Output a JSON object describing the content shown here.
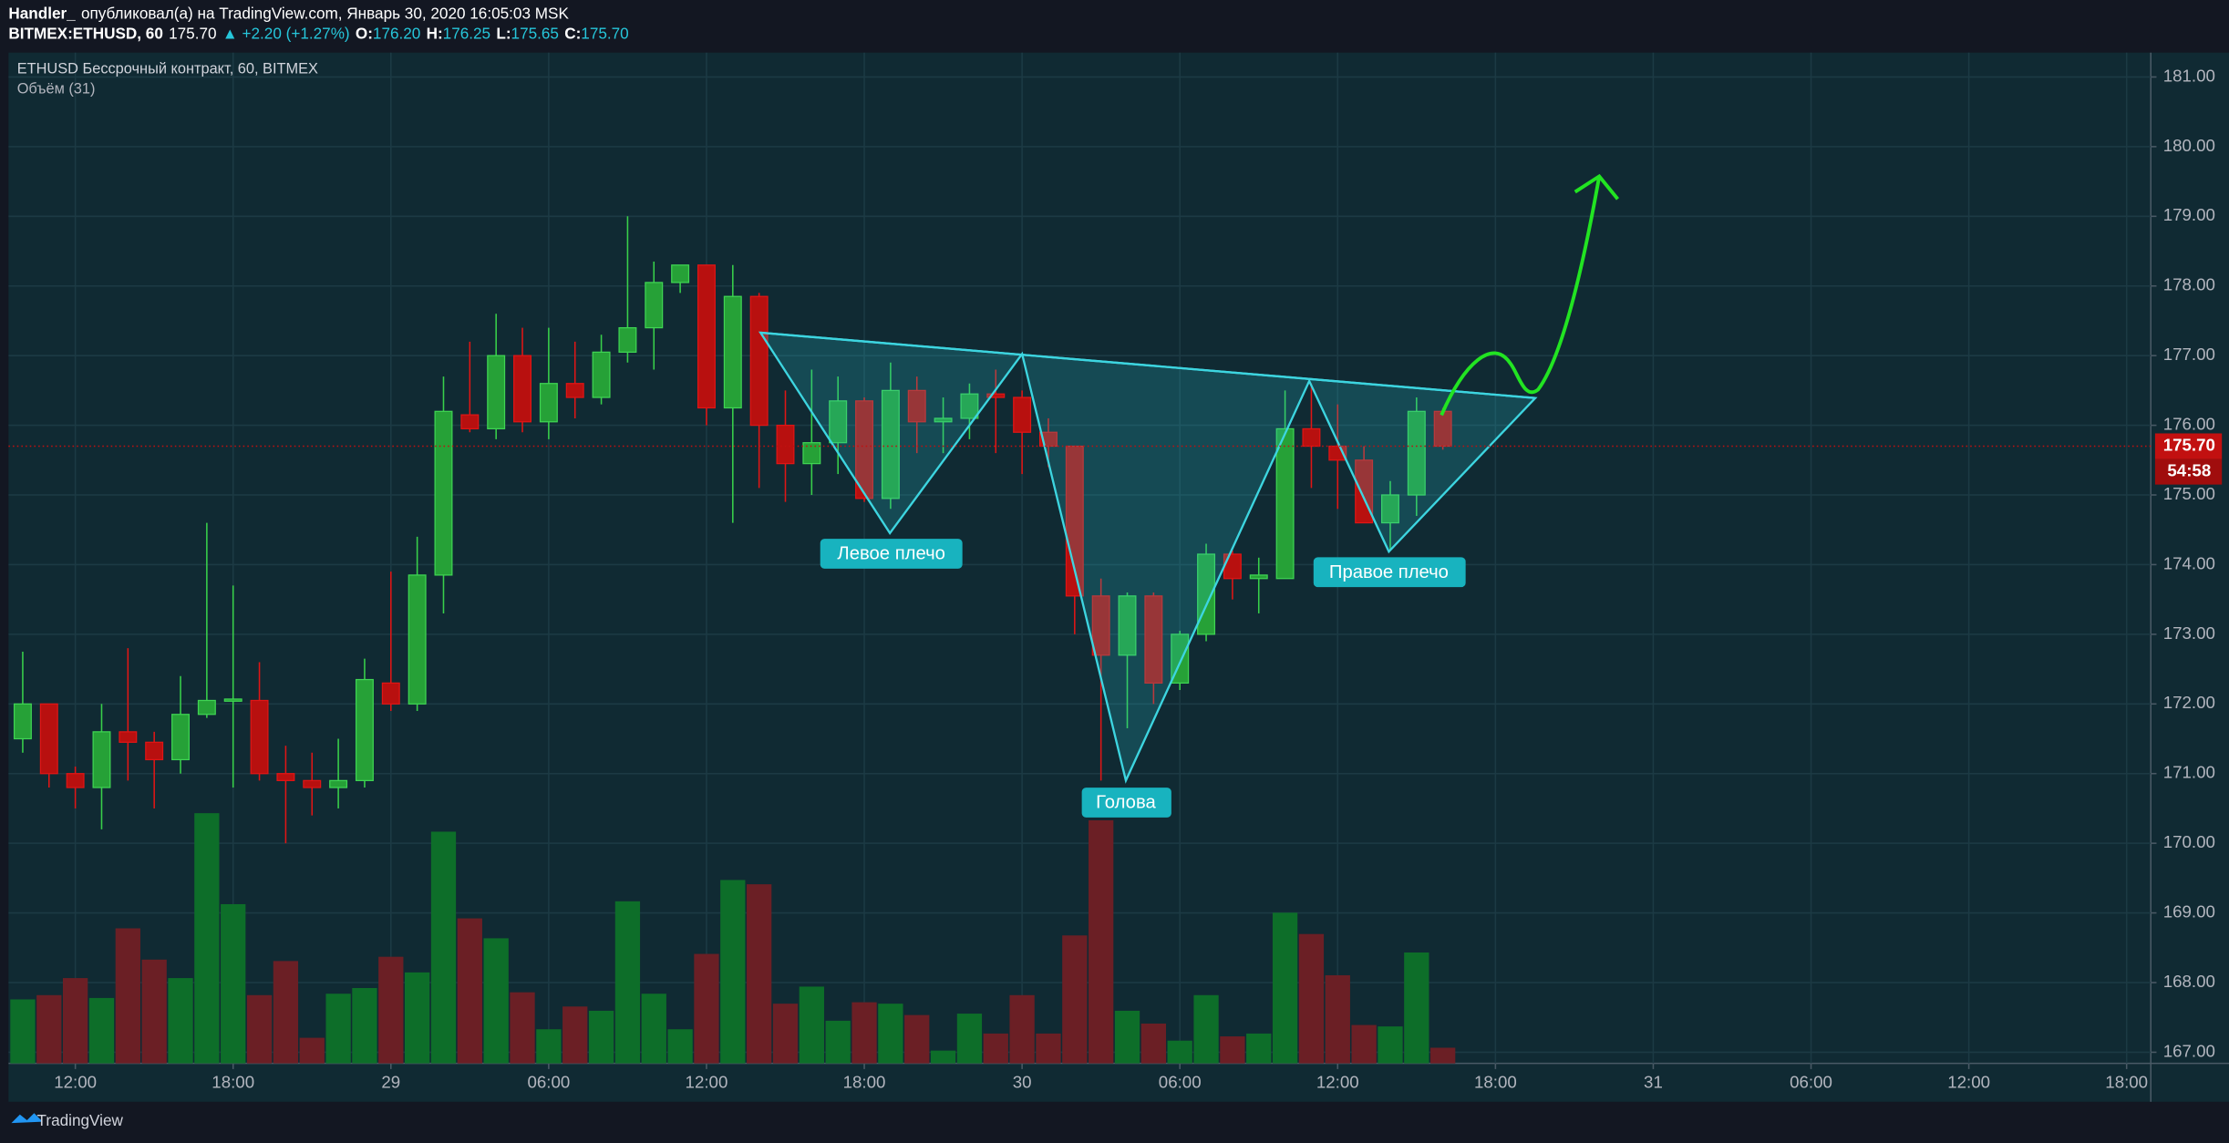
{
  "header": {
    "author": "Handler_",
    "published": "опубликовал(а) на TradingView.com, Январь 30, 2020 16:05:03 MSK",
    "symbol": "BITMEX:ETHUSD, 60",
    "last": "175.70",
    "change": "▲ +2.20 (+1.27%)",
    "o_label": "O:",
    "o": "176.20",
    "h_label": "H:",
    "h": "176.25",
    "l_label": "L:",
    "l": "175.65",
    "c_label": "C:",
    "c": "175.70"
  },
  "chart_data": {
    "type": "candlestick",
    "title": "ETHUSD Бессрочный контракт, 60, BITMEX",
    "volume_label": "Объём (31)",
    "open": [
      171.5,
      172.0,
      171.0,
      170.8,
      171.6,
      171.45,
      171.2,
      171.85,
      172.05,
      172.05,
      171.0,
      170.9,
      170.8,
      170.9,
      172.3,
      172.0,
      173.85,
      176.15,
      175.95,
      177.0,
      176.05,
      176.6,
      176.4,
      177.05,
      177.4,
      178.05,
      178.3,
      176.25,
      177.85,
      176.0,
      175.45,
      175.75,
      176.35,
      174.95,
      176.5,
      176.05,
      176.1,
      176.45,
      176.4,
      175.9,
      175.7,
      173.55,
      172.7,
      173.55,
      172.3,
      173.0,
      174.15,
      173.8,
      173.8,
      175.95,
      175.7,
      175.5,
      174.6,
      175.0,
      176.2
    ],
    "high": [
      172.75,
      172.0,
      171.1,
      172.0,
      172.8,
      171.6,
      172.4,
      174.6,
      173.7,
      172.6,
      171.4,
      171.3,
      171.5,
      172.65,
      173.9,
      174.4,
      176.7,
      177.2,
      177.6,
      177.4,
      177.4,
      177.2,
      177.3,
      179.0,
      178.35,
      178.3,
      178.3,
      178.3,
      177.9,
      176.5,
      176.8,
      176.7,
      176.4,
      176.9,
      176.7,
      176.4,
      176.6,
      176.8,
      176.5,
      176.1,
      175.7,
      173.8,
      173.6,
      173.6,
      173.05,
      174.3,
      174.2,
      174.1,
      176.5,
      176.6,
      176.3,
      175.7,
      175.2,
      176.4,
      176.25
    ],
    "low": [
      171.3,
      170.8,
      170.5,
      170.2,
      170.9,
      170.5,
      171.0,
      171.8,
      170.8,
      170.9,
      170.0,
      170.4,
      170.5,
      170.8,
      171.9,
      171.9,
      173.3,
      175.9,
      175.8,
      175.9,
      175.8,
      176.1,
      176.3,
      176.9,
      176.8,
      177.9,
      176.0,
      174.6,
      175.1,
      174.9,
      175.0,
      175.3,
      174.9,
      174.8,
      175.6,
      175.6,
      175.8,
      175.6,
      175.3,
      175.4,
      173.0,
      170.9,
      171.65,
      172.0,
      172.2,
      172.9,
      173.5,
      173.3,
      173.8,
      175.1,
      174.8,
      174.6,
      174.2,
      174.7,
      175.65
    ],
    "close": [
      172.0,
      171.0,
      170.8,
      171.6,
      171.45,
      171.2,
      171.85,
      172.05,
      172.07,
      171.0,
      170.9,
      170.8,
      170.9,
      172.35,
      172.0,
      173.85,
      176.2,
      175.95,
      177.0,
      176.05,
      176.6,
      176.4,
      177.05,
      177.4,
      178.05,
      178.3,
      176.25,
      177.85,
      176.0,
      175.45,
      175.75,
      176.35,
      174.95,
      176.5,
      176.05,
      176.1,
      176.45,
      176.4,
      175.9,
      175.7,
      173.55,
      172.7,
      173.55,
      172.3,
      173.0,
      174.15,
      173.8,
      173.85,
      175.95,
      175.7,
      175.5,
      174.6,
      175.0,
      176.2,
      175.7
    ],
    "volume": [
      45,
      48,
      60,
      46,
      95,
      73,
      60,
      176,
      112,
      48,
      72,
      18,
      49,
      53,
      75,
      64,
      163,
      102,
      88,
      50,
      24,
      40,
      37,
      114,
      49,
      24,
      77,
      129,
      126,
      42,
      54,
      30,
      43,
      42,
      34,
      9,
      35,
      21,
      48,
      21,
      90,
      171,
      37,
      28,
      16,
      48,
      19,
      21,
      106,
      91,
      62,
      27,
      26,
      78,
      11
    ],
    "up_color": "#26a137",
    "down_color": "#b8100f",
    "volume_up_color": "#0d6e29",
    "volume_down_color": "#6b1f25",
    "xlim": [
      -0.54,
      80.92
    ],
    "xticks": [
      {
        "value": 2,
        "label": "12:00"
      },
      {
        "value": 8,
        "label": "18:00"
      },
      {
        "value": 14,
        "label": "29"
      },
      {
        "value": 20,
        "label": "06:00"
      },
      {
        "value": 26,
        "label": "12:00"
      },
      {
        "value": 32,
        "label": "18:00"
      },
      {
        "value": 38,
        "label": "30"
      },
      {
        "value": 44,
        "label": "06:00"
      },
      {
        "value": 50,
        "label": "12:00"
      },
      {
        "value": 56,
        "label": "18:00"
      },
      {
        "value": 62,
        "label": "31"
      },
      {
        "value": 68,
        "label": "06:00"
      },
      {
        "value": 74,
        "label": "12:00"
      },
      {
        "value": 80,
        "label": "18:00"
      }
    ],
    "ylim": [
      166.84,
      181.35
    ],
    "yticks": [
      {
        "value": 167,
        "label": "167.00"
      },
      {
        "value": 168,
        "label": "168.00"
      },
      {
        "value": 169,
        "label": "169.00"
      },
      {
        "value": 170,
        "label": "170.00"
      },
      {
        "value": 171,
        "label": "171.00"
      },
      {
        "value": 172,
        "label": "172.00"
      },
      {
        "value": 173,
        "label": "173.00"
      },
      {
        "value": 174,
        "label": "174.00"
      },
      {
        "value": 175,
        "label": "175.00"
      },
      {
        "value": 176,
        "label": "176.00"
      },
      {
        "value": 177,
        "label": "177.00"
      },
      {
        "value": 178,
        "label": "178.00"
      },
      {
        "value": 179,
        "label": "179.00"
      },
      {
        "value": 180,
        "label": "180.00"
      },
      {
        "value": 181,
        "label": "181.00"
      }
    ],
    "grid": true,
    "last_price": {
      "value": 175.7,
      "label": "175.70"
    },
    "countdown": "54:58",
    "annotations": [
      "Левое плечо",
      "Голова",
      "Правое плечо"
    ]
  },
  "footer": {
    "brand": "TradingView"
  }
}
